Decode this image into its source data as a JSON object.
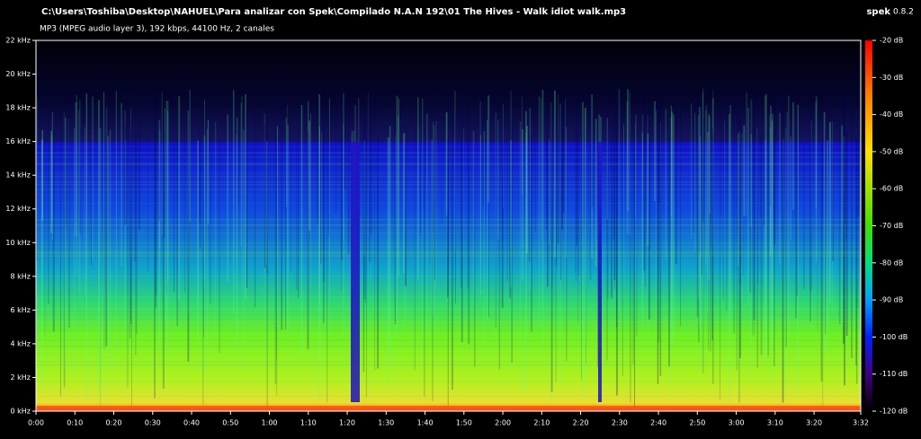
{
  "header": {
    "file_path": "C:\\Users\\Toshiba\\Desktop\\NAHUEL\\Para analizar con Spek\\Compilado N.A.N 192\\01 The Hives - Walk idiot walk.mp3",
    "format_info": "MP3 (MPEG audio layer 3), 192 kbps, 44100 Hz, 2 canales",
    "app_name": "spek",
    "app_version": "0.8.2"
  },
  "spectrogram": {
    "frequency_range": [
      0,
      22
    ],
    "frequency_ticks": [
      {
        "value": 0,
        "label": "0 kHz"
      },
      {
        "value": 2,
        "label": "2 kHz"
      },
      {
        "value": 4,
        "label": "4 kHz"
      },
      {
        "value": 6,
        "label": "6 kHz"
      },
      {
        "value": 8,
        "label": "8 kHz"
      },
      {
        "value": 10,
        "label": "10 kHz"
      },
      {
        "value": 12,
        "label": "12 kHz"
      },
      {
        "value": 14,
        "label": "14 kHz"
      },
      {
        "value": 16,
        "label": "16 kHz"
      },
      {
        "value": 18,
        "label": "18 kHz"
      },
      {
        "value": 20,
        "label": "20 kHz"
      },
      {
        "value": 22,
        "label": "22 kHz"
      }
    ],
    "time_range": [
      0,
      212
    ],
    "time_ticks": [
      {
        "value": 0,
        "label": "0:00"
      },
      {
        "value": 10,
        "label": "0:10"
      },
      {
        "value": 20,
        "label": "0:20"
      },
      {
        "value": 30,
        "label": "0:30"
      },
      {
        "value": 40,
        "label": "0:40"
      },
      {
        "value": 50,
        "label": "0:50"
      },
      {
        "value": 60,
        "label": "1:00"
      },
      {
        "value": 70,
        "label": "1:10"
      },
      {
        "value": 80,
        "label": "1:20"
      },
      {
        "value": 90,
        "label": "1:30"
      },
      {
        "value": 100,
        "label": "1:40"
      },
      {
        "value": 110,
        "label": "1:50"
      },
      {
        "value": 120,
        "label": "2:00"
      },
      {
        "value": 130,
        "label": "2:10"
      },
      {
        "value": 140,
        "label": "2:20"
      },
      {
        "value": 150,
        "label": "2:30"
      },
      {
        "value": 160,
        "label": "2:40"
      },
      {
        "value": 170,
        "label": "2:50"
      },
      {
        "value": 180,
        "label": "3:00"
      },
      {
        "value": 190,
        "label": "3:10"
      },
      {
        "value": 200,
        "label": "3:20"
      },
      {
        "value": 212,
        "label": "3:32"
      }
    ],
    "level_range": [
      -120,
      -20
    ],
    "level_ticks": [
      {
        "value": -20,
        "label": "-20 dB"
      },
      {
        "value": -30,
        "label": "-30 dB"
      },
      {
        "value": -40,
        "label": "-40 dB"
      },
      {
        "value": -50,
        "label": "-50 dB"
      },
      {
        "value": -60,
        "label": "-60 dB"
      },
      {
        "value": -70,
        "label": "-70 dB"
      },
      {
        "value": -80,
        "label": "-80 dB"
      },
      {
        "value": -90,
        "label": "-90 dB"
      },
      {
        "value": -100,
        "label": "-100 dB"
      },
      {
        "value": -110,
        "label": "-110 dB"
      },
      {
        "value": -120,
        "label": "-120 dB"
      }
    ]
  }
}
